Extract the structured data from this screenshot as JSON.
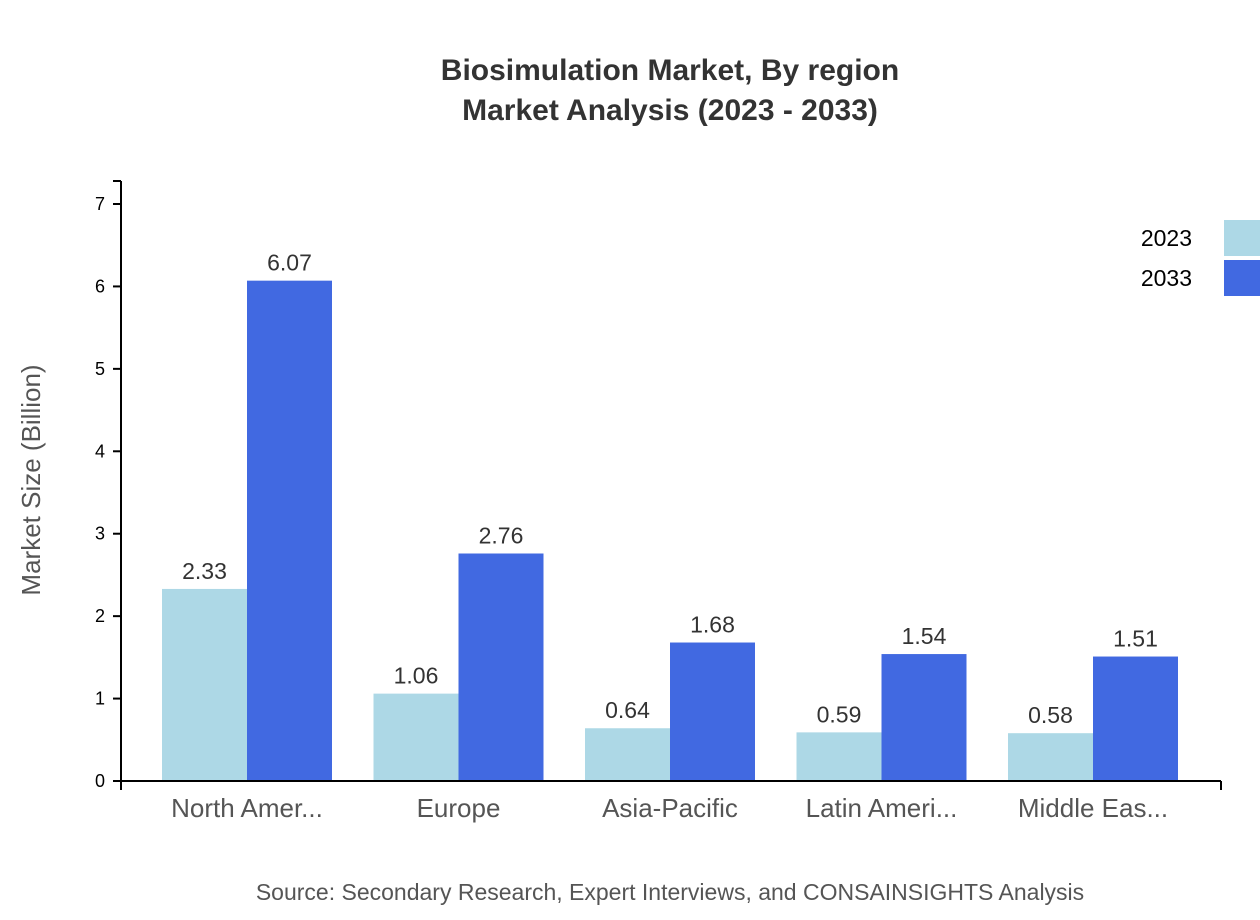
{
  "chart_data": {
    "type": "bar",
    "title": "Biosimulation Market, By region",
    "subtitle": "Market Analysis (2023 - 2033)",
    "xlabel": "",
    "ylabel": "Market Size (Billion)",
    "source": "Source: Secondary Research, Expert Interviews, and CONSAINSIGHTS Analysis",
    "categories": [
      "North Amer...",
      "Europe",
      "Asia-Pacific",
      "Latin Ameri...",
      "Middle Eas..."
    ],
    "series": [
      {
        "name": "2023",
        "color": "#ADD8E6",
        "values": [
          2.33,
          1.06,
          0.64,
          0.59,
          0.58
        ]
      },
      {
        "name": "2033",
        "color": "#4169E1",
        "values": [
          6.07,
          2.76,
          1.68,
          1.54,
          1.51
        ]
      }
    ],
    "yticks": [
      0,
      1,
      2,
      3,
      4,
      5,
      6,
      7
    ],
    "ylim": [
      0,
      7.28
    ],
    "grid": false,
    "legend": "top-right"
  }
}
